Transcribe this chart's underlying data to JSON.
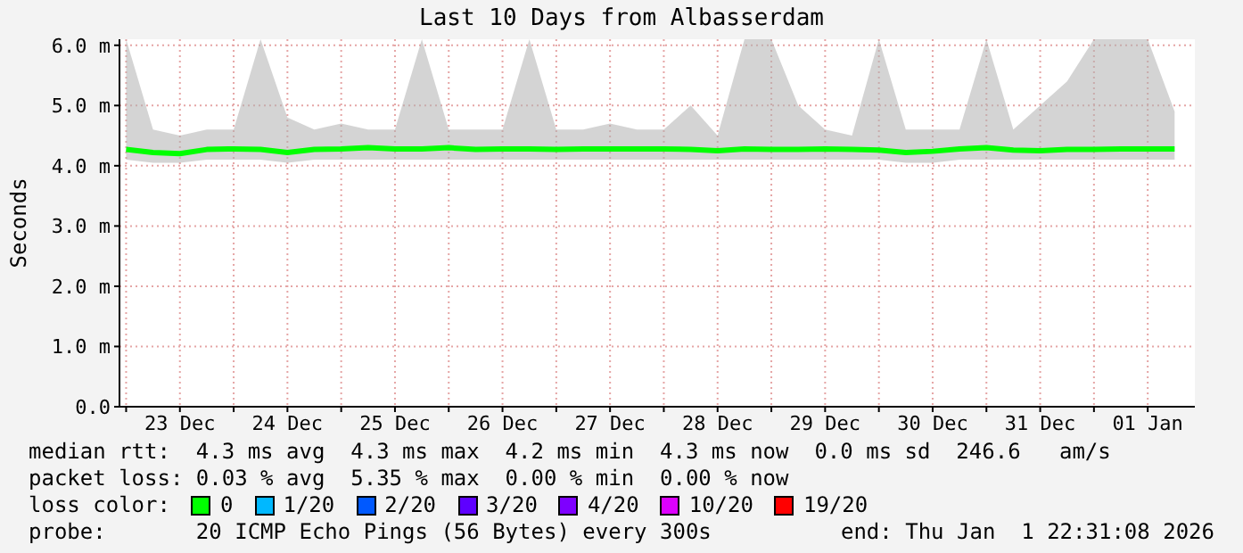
{
  "chart_data": {
    "type": "line",
    "title": "Last 10 Days from Albasserdam",
    "ylabel": "Seconds",
    "legend_title": "loss color:",
    "legend": "bottom",
    "grid": true,
    "marker": "none",
    "line_style": "solid",
    "ylim": [
      0,
      6.1
    ],
    "yticks": [
      {
        "value": 0,
        "label": "0.0"
      },
      {
        "value": 1,
        "label": "1.0 m"
      },
      {
        "value": 2,
        "label": "2.0 m"
      },
      {
        "value": 3,
        "label": "3.0 m"
      },
      {
        "value": 4,
        "label": "4.0 m"
      },
      {
        "value": 5,
        "label": "5.0 m"
      },
      {
        "value": 6,
        "label": "6.0 m"
      }
    ],
    "xlim": [
      "2025-12-22T22:31",
      "2026-01-01T22:31"
    ],
    "xticks": [
      {
        "value": "2025-12-23T00:00",
        "label": null
      },
      {
        "value": "2025-12-23T12:00",
        "label": "23 Dec"
      },
      {
        "value": "2025-12-24T00:00",
        "label": null
      },
      {
        "value": "2025-12-24T12:00",
        "label": "24 Dec"
      },
      {
        "value": "2025-12-25T00:00",
        "label": null
      },
      {
        "value": "2025-12-25T12:00",
        "label": "25 Dec"
      },
      {
        "value": "2025-12-26T00:00",
        "label": null
      },
      {
        "value": "2025-12-26T12:00",
        "label": "26 Dec"
      },
      {
        "value": "2025-12-27T00:00",
        "label": null
      },
      {
        "value": "2025-12-27T12:00",
        "label": "27 Dec"
      },
      {
        "value": "2025-12-28T00:00",
        "label": null
      },
      {
        "value": "2025-12-28T12:00",
        "label": "28 Dec"
      },
      {
        "value": "2025-12-29T00:00",
        "label": null
      },
      {
        "value": "2025-12-29T12:00",
        "label": "29 Dec"
      },
      {
        "value": "2025-12-30T00:00",
        "label": null
      },
      {
        "value": "2025-12-30T12:00",
        "label": "30 Dec"
      },
      {
        "value": "2025-12-31T00:00",
        "label": null
      },
      {
        "value": "2025-12-31T12:00",
        "label": "31 Dec"
      },
      {
        "value": "2026-01-01T00:00",
        "label": null
      },
      {
        "value": "2026-01-01T12:00",
        "label": "01 Jan"
      }
    ],
    "x": [
      "2025-12-23T00:00",
      "2025-12-23T06:00",
      "2025-12-23T12:00",
      "2025-12-23T18:00",
      "2025-12-24T00:00",
      "2025-12-24T06:00",
      "2025-12-24T12:00",
      "2025-12-24T18:00",
      "2025-12-25T00:00",
      "2025-12-25T06:00",
      "2025-12-25T12:00",
      "2025-12-25T18:00",
      "2025-12-26T00:00",
      "2025-12-26T06:00",
      "2025-12-26T12:00",
      "2025-12-26T18:00",
      "2025-12-27T00:00",
      "2025-12-27T06:00",
      "2025-12-27T12:00",
      "2025-12-27T18:00",
      "2025-12-28T00:00",
      "2025-12-28T06:00",
      "2025-12-28T12:00",
      "2025-12-28T18:00",
      "2025-12-29T00:00",
      "2025-12-29T06:00",
      "2025-12-29T12:00",
      "2025-12-29T18:00",
      "2025-12-30T00:00",
      "2025-12-30T06:00",
      "2025-12-30T12:00",
      "2025-12-30T18:00",
      "2025-12-31T00:00",
      "2025-12-31T06:00",
      "2025-12-31T12:00",
      "2025-12-31T18:00",
      "2026-01-01T00:00",
      "2026-01-01T06:00",
      "2026-01-01T12:00",
      "2026-01-01T18:00"
    ],
    "series": [
      {
        "name": "0",
        "color": "#00ff00",
        "values": [
          4.27,
          4.22,
          4.2,
          4.27,
          4.28,
          4.27,
          4.22,
          4.27,
          4.28,
          4.3,
          4.28,
          4.28,
          4.3,
          4.27,
          4.28,
          4.28,
          4.27,
          4.28,
          4.28,
          4.28,
          4.28,
          4.27,
          4.25,
          4.28,
          4.27,
          4.27,
          4.28,
          4.27,
          4.26,
          4.22,
          4.24,
          4.28,
          4.3,
          4.26,
          4.25,
          4.27,
          4.27,
          4.28,
          4.28,
          4.28
        ],
        "lower": [
          4.1,
          4.05,
          4.05,
          4.1,
          4.1,
          4.1,
          4.05,
          4.1,
          4.1,
          4.1,
          4.1,
          4.1,
          4.1,
          4.1,
          4.1,
          4.1,
          4.1,
          4.1,
          4.1,
          4.1,
          4.1,
          4.1,
          4.1,
          4.1,
          4.1,
          4.1,
          4.1,
          4.1,
          4.1,
          4.05,
          4.05,
          4.1,
          4.1,
          4.1,
          4.1,
          4.1,
          4.1,
          4.1,
          4.1,
          4.1
        ],
        "upper": [
          6.1,
          4.6,
          4.5,
          4.6,
          4.6,
          6.1,
          4.8,
          4.6,
          4.7,
          4.6,
          4.6,
          6.1,
          4.6,
          4.6,
          4.6,
          6.1,
          4.6,
          4.6,
          4.7,
          4.6,
          4.6,
          5.0,
          4.5,
          6.1,
          6.1,
          5.0,
          4.6,
          4.5,
          6.1,
          4.6,
          4.6,
          4.6,
          6.1,
          4.6,
          5.0,
          5.4,
          6.1,
          6.1,
          6.1,
          4.9
        ]
      },
      {
        "name": "1/20",
        "color": "#00b8ff",
        "values": [
          null,
          null,
          null,
          null,
          null,
          null,
          null,
          null,
          null,
          null,
          null,
          null,
          null,
          null,
          null,
          null,
          null,
          null,
          null,
          null,
          null,
          null,
          null,
          null,
          null,
          null,
          null,
          null,
          null,
          null,
          null,
          null,
          null,
          null,
          null,
          null,
          null,
          null,
          null,
          null
        ]
      },
      {
        "name": "2/20",
        "color": "#0059ff",
        "values": [
          null,
          null,
          null,
          null,
          null,
          null,
          null,
          null,
          null,
          null,
          null,
          null,
          null,
          null,
          null,
          null,
          null,
          null,
          null,
          null,
          null,
          null,
          null,
          null,
          null,
          null,
          null,
          null,
          null,
          null,
          null,
          null,
          null,
          null,
          null,
          null,
          null,
          null,
          null,
          null
        ]
      },
      {
        "name": "3/20",
        "color": "#5e00ff",
        "values": [
          null,
          null,
          null,
          null,
          null,
          null,
          null,
          null,
          null,
          null,
          null,
          null,
          null,
          null,
          null,
          null,
          null,
          null,
          null,
          null,
          null,
          null,
          null,
          null,
          null,
          null,
          null,
          null,
          null,
          null,
          null,
          null,
          null,
          null,
          null,
          null,
          null,
          null,
          null,
          null
        ]
      },
      {
        "name": "4/20",
        "color": "#7e00ff",
        "values": [
          null,
          null,
          null,
          null,
          null,
          null,
          null,
          null,
          null,
          null,
          null,
          null,
          null,
          null,
          null,
          null,
          null,
          null,
          null,
          null,
          null,
          null,
          null,
          null,
          null,
          null,
          null,
          null,
          null,
          null,
          null,
          null,
          null,
          null,
          null,
          null,
          null,
          null,
          null,
          null
        ]
      },
      {
        "name": "10/20",
        "color": "#dd00ff",
        "values": [
          null,
          null,
          null,
          null,
          null,
          null,
          null,
          null,
          null,
          null,
          null,
          null,
          null,
          null,
          null,
          null,
          null,
          null,
          null,
          null,
          null,
          null,
          null,
          null,
          null,
          null,
          null,
          null,
          null,
          null,
          null,
          null,
          null,
          null,
          null,
          null,
          null,
          null,
          null,
          null
        ]
      },
      {
        "name": "19/20",
        "color": "#ff0000",
        "values": [
          null,
          null,
          null,
          null,
          null,
          null,
          null,
          null,
          null,
          null,
          null,
          null,
          null,
          null,
          null,
          null,
          null,
          null,
          null,
          null,
          null,
          null,
          null,
          null,
          null,
          null,
          null,
          null,
          null,
          null,
          null,
          null,
          null,
          null,
          null,
          null,
          null,
          null,
          null,
          null
        ]
      }
    ],
    "annotations": [
      "median rtt:  4.3 ms avg  4.3 ms max  4.2 ms min  4.3 ms now  0.0 ms sd  246.6   am/s",
      "packet loss: 0.03 % avg  5.35 % max  0.00 % min  0.00 % now",
      "probe:       20 ICMP Echo Pings (56 Bytes) every 300s",
      "end: Thu Jan  1 22:31:08 2026"
    ]
  }
}
